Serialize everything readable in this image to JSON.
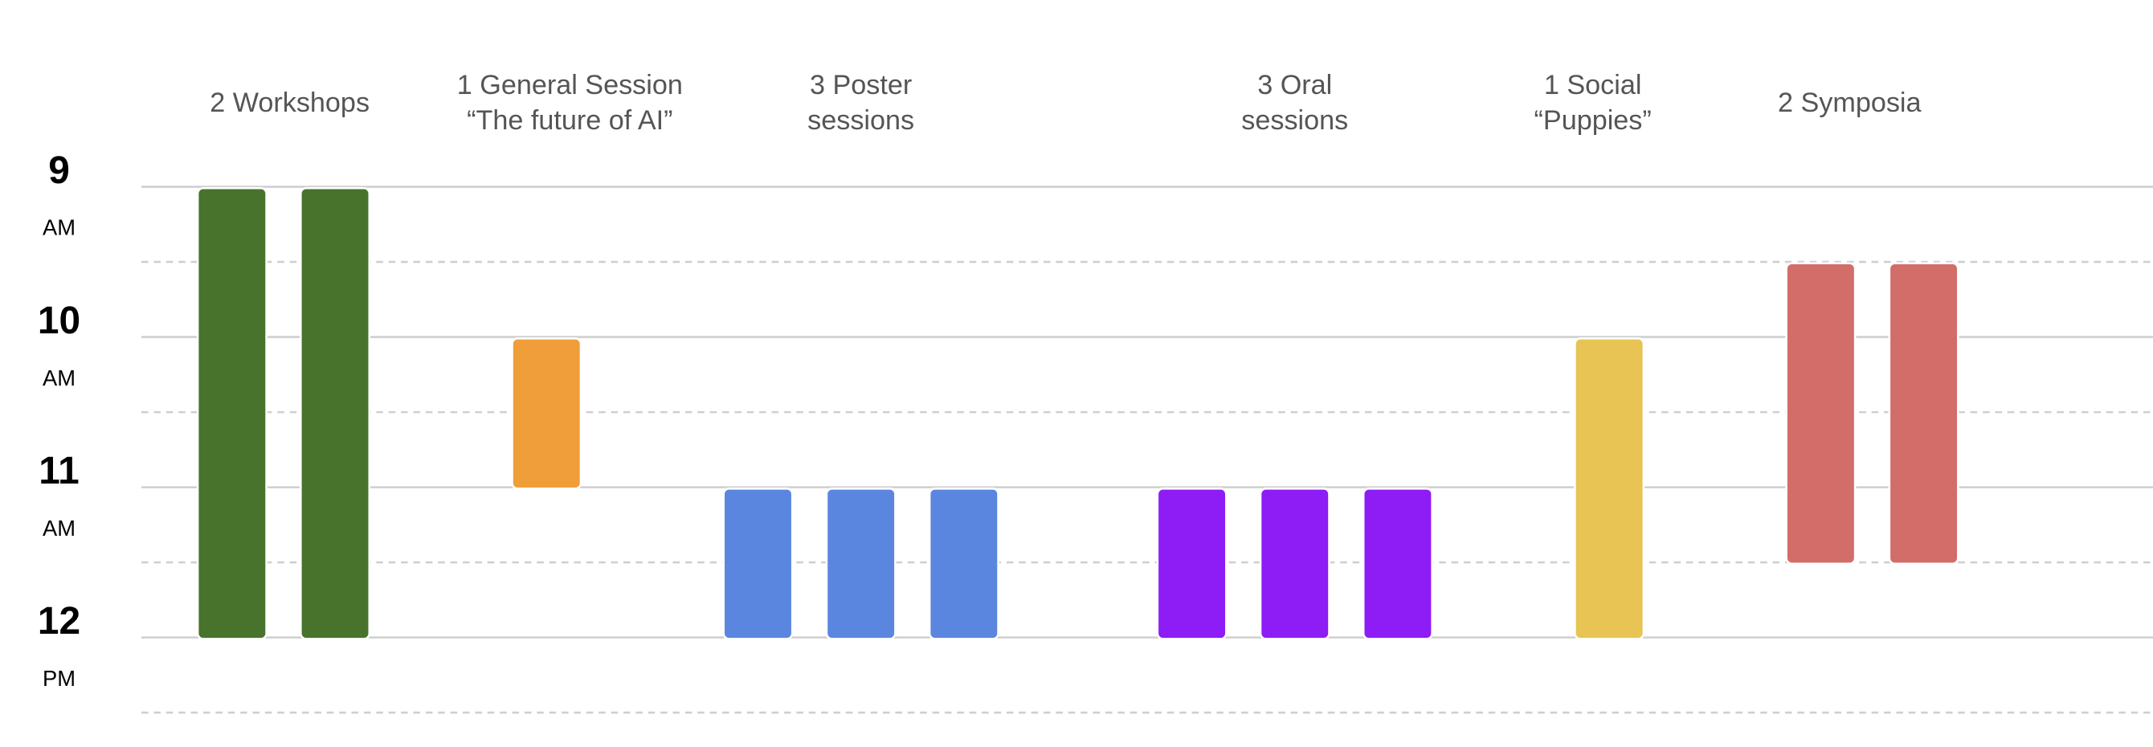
{
  "schedule": {
    "hours": [
      9,
      10,
      11,
      12
    ],
    "periods": [
      "AM",
      "AM",
      "AM",
      "PM"
    ],
    "range": [
      9,
      12.5
    ],
    "events": [
      {
        "label": [
          "2 Workshops"
        ],
        "color": "#47732c",
        "sessions": [
          {
            "start": 9,
            "end": 12
          },
          {
            "start": 9,
            "end": 12
          }
        ]
      },
      {
        "label": [
          "1 General Session",
          "“The future of AI”"
        ],
        "color": "#f09e39",
        "sessions": [
          {
            "start": 10,
            "end": 11
          }
        ]
      },
      {
        "label": [
          "3 Poster",
          "sessions"
        ],
        "color": "#5b86e0",
        "sessions": [
          {
            "start": 11,
            "end": 12
          },
          {
            "start": 11,
            "end": 12
          },
          {
            "start": 11,
            "end": 12
          }
        ]
      },
      {
        "label": [
          "3 Oral",
          "sessions"
        ],
        "color": "#8d1cf5",
        "sessions": [
          {
            "start": 11,
            "end": 12
          },
          {
            "start": 11,
            "end": 12
          },
          {
            "start": 11,
            "end": 12
          }
        ]
      },
      {
        "label": [
          "1 Social",
          "“Puppies”"
        ],
        "color": "#e8c454",
        "sessions": [
          {
            "start": 10,
            "end": 12
          }
        ]
      },
      {
        "label": [
          "2 Symposia"
        ],
        "color": "#d26d6a",
        "sessions": [
          {
            "start": 9.5,
            "end": 11.5
          },
          {
            "start": 9.5,
            "end": 11.5
          }
        ]
      }
    ]
  }
}
